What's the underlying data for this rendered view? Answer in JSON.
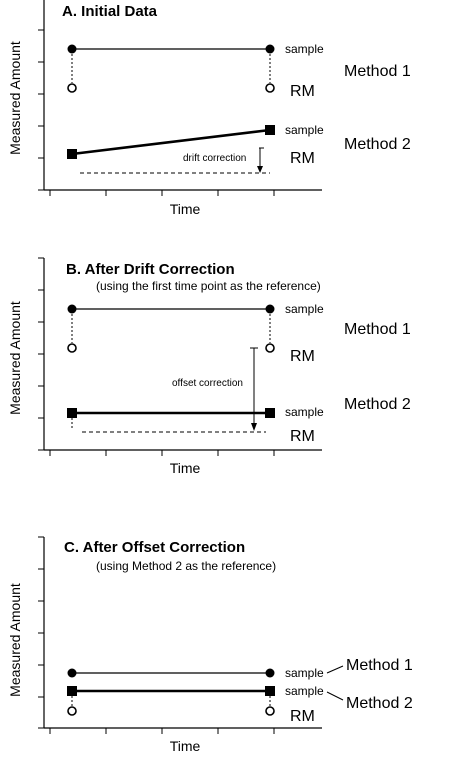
{
  "panels": [
    {
      "title": "A.  Initial Data",
      "subtitle": "",
      "ylabel": "Measured Amount",
      "xlabel": "Time",
      "sample_label": "sample",
      "rm_label": "RM",
      "method1": "Method 1",
      "method2": "Method 2",
      "annotation": "drift correction"
    },
    {
      "title": "B.  After Drift Correction",
      "subtitle": "(using the first time point as the reference)",
      "ylabel": "Measured Amount",
      "xlabel": "Time",
      "sample_label": "sample",
      "rm_label": "RM",
      "method1": "Method 1",
      "method2": "Method 2",
      "annotation": "offset correction"
    },
    {
      "title": "C.  After Offset Correction",
      "subtitle": "(using Method 2 as the reference)",
      "ylabel": "Measured Amount",
      "xlabel": "Time",
      "sample_label": "sample",
      "rm_label": "RM",
      "method1": "Method 1",
      "method2": "Method 2"
    }
  ]
}
